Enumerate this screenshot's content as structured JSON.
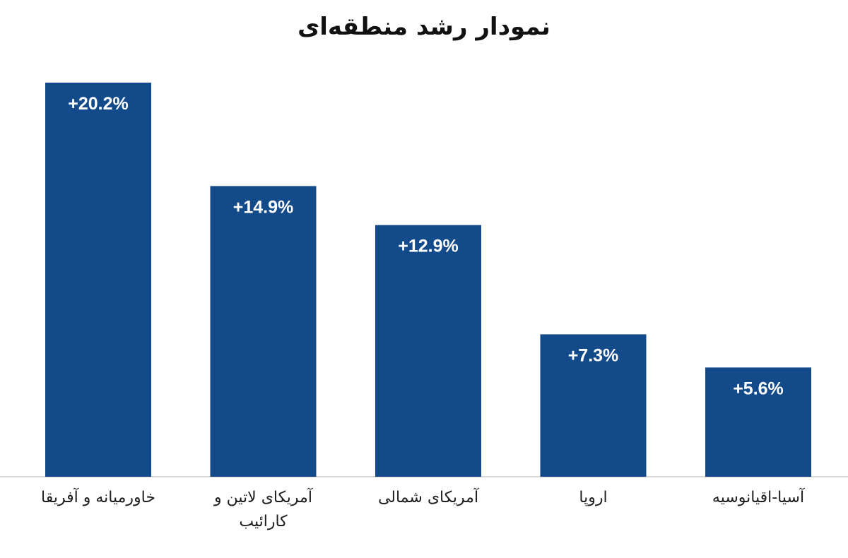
{
  "chart_data": {
    "type": "bar",
    "title": "نمودار رشد منطقه‌ای",
    "categories": [
      "خاورمیانه و آفریقا",
      "آمریکای لاتین و کارائیب",
      "آمریکای شمالی",
      "اروپا",
      "آسیا-اقیانوسیه"
    ],
    "values": [
      20.2,
      14.9,
      12.9,
      7.3,
      5.6
    ],
    "value_labels": [
      "+20.2%",
      "+14.9%",
      "+12.9%",
      "+7.3%",
      "+5.6%"
    ],
    "color": "#134a89"
  }
}
